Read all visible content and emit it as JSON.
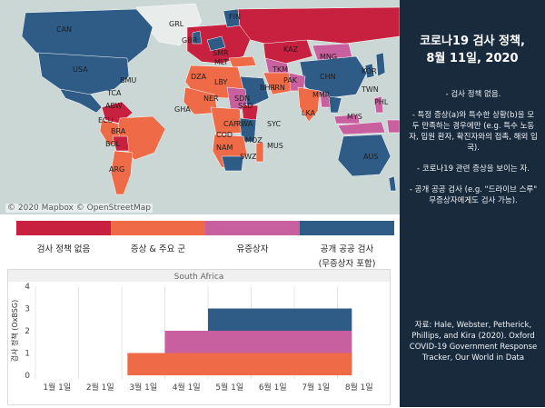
{
  "map": {
    "credit": "© 2020 Mapbox © OpenStreetMap",
    "country_labels": [
      "CAN",
      "USA",
      "BMU",
      "TCA",
      "ABW",
      "ECU",
      "BRA",
      "BOL",
      "ARG",
      "GRL",
      "GBR",
      "SMR",
      "MLT",
      "DZA",
      "LBY",
      "NER",
      "GHA",
      "CAF",
      "COD",
      "NAM",
      "SSD",
      "SDN",
      "RWA",
      "SYC",
      "MUS",
      "MOZ",
      "SWZ",
      "FIN",
      "KAZ",
      "MNG",
      "CHN",
      "KOR",
      "TKM",
      "IRN",
      "PAK",
      "BHR",
      "MMR",
      "LKA",
      "TWN",
      "PHL",
      "MYS",
      "AUS"
    ]
  },
  "legend": {
    "colors": [
      "#c8203f",
      "#ef6b47",
      "#c85f9e",
      "#2e5c87"
    ],
    "labels": [
      "검사 정책 없음",
      "증상 & 주요 군",
      "유증상자",
      "공개 공공 검사\n(무증상자 포함)"
    ]
  },
  "chart_data": {
    "type": "area",
    "title": "South Africa",
    "ylabel": "검사 정책 (OxBSG)",
    "x_categories": [
      "1월 1일",
      "2월 1일",
      "3월 1일",
      "4월 1일",
      "5월 1일",
      "6월 1일",
      "7월 1일",
      "8월 1일"
    ],
    "ylim": [
      0,
      4
    ],
    "yticks": [
      "0",
      "1",
      "2",
      "3",
      "4"
    ],
    "steps": [
      {
        "start": "3월 5일",
        "end": "8월 11일",
        "value": 1,
        "color": "#ef6b47"
      },
      {
        "start": "4월 1일",
        "end": "8월 11일",
        "value": 2,
        "color": "#c85f9e"
      },
      {
        "start": "5월 1일",
        "end": "8월 11일",
        "value": 3,
        "color": "#2e5c87"
      }
    ]
  },
  "sidebar": {
    "title_line1": "코로나19 검사 정책,",
    "title_line2": "8월 11일, 2020",
    "items": [
      "- 검사 정책 없음.",
      "- 특정 증상(a)와 특수한 상황(b)을 모두 만족하는 경우에만 (e.g. 특수 노동자, 입원 환자, 확진자와의 접촉, 해외 입국).",
      "- 코로나19 관련 증상을 보이는 자.",
      "- 공개 공공 검사 (e.g. \"드라이브 스루\" 무증상자에게도 검사 가능)."
    ],
    "source": "자료: Hale, Webster, Petherick, Phillips, and Kira (2020). Oxford COVID-19 Government Response Tracker, Our World in Data"
  }
}
